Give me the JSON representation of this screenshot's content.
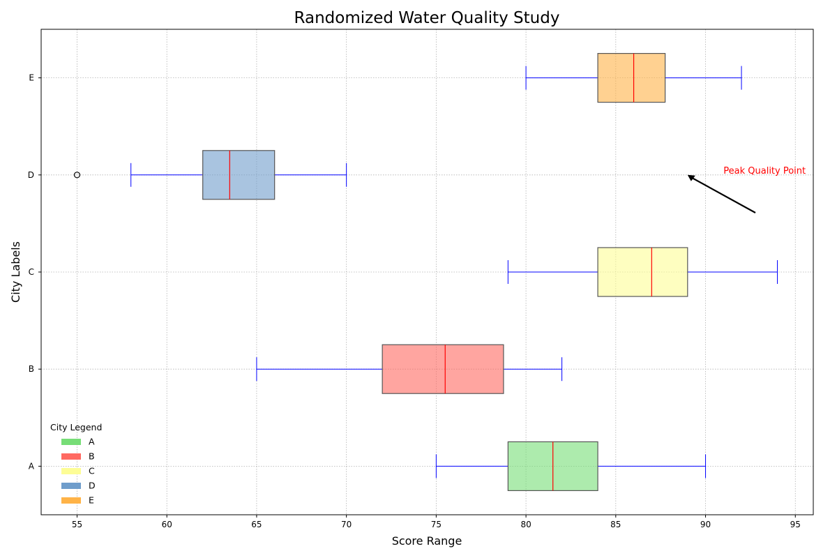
{
  "chart_data": {
    "type": "boxplot",
    "orientation": "horizontal",
    "title": "Randomized Water Quality Study",
    "xlabel": "Score Range",
    "ylabel": "City Labels",
    "xlim": [
      53,
      96
    ],
    "xticks": [
      55,
      60,
      65,
      70,
      75,
      80,
      85,
      90,
      95
    ],
    "grid": true,
    "categories": [
      "A",
      "B",
      "C",
      "D",
      "E"
    ],
    "boxes": [
      {
        "label": "A",
        "whisker_low": 75,
        "q1": 79,
        "median": 81.5,
        "q3": 84,
        "whisker_high": 90,
        "outliers": [],
        "color": "#77dd77"
      },
      {
        "label": "B",
        "whisker_low": 65,
        "q1": 72,
        "median": 75.5,
        "q3": 78.75,
        "whisker_high": 82,
        "outliers": [],
        "color": "#ff6961"
      },
      {
        "label": "C",
        "whisker_low": 79,
        "q1": 84,
        "median": 87,
        "q3": 89,
        "whisker_high": 94,
        "outliers": [],
        "color": "#fdfd96"
      },
      {
        "label": "D",
        "whisker_low": 58,
        "q1": 62,
        "median": 63.5,
        "q3": 66,
        "whisker_high": 70,
        "outliers": [
          55
        ],
        "color": "#6f9dcb"
      },
      {
        "label": "E",
        "whisker_low": 80,
        "q1": 84,
        "median": 86,
        "q3": 87.75,
        "whisker_high": 92,
        "outliers": [],
        "color": "#ffb347"
      }
    ],
    "whisker_color": "#0000ff",
    "median_color": "#ff0000",
    "box_edge_color": "#555555",
    "legend": {
      "title": "City Legend",
      "position": "lower-left",
      "entries": [
        {
          "label": "A",
          "color": "#77dd77"
        },
        {
          "label": "B",
          "color": "#ff6961"
        },
        {
          "label": "C",
          "color": "#fdfd96"
        },
        {
          "label": "D",
          "color": "#6f9dcb"
        },
        {
          "label": "E",
          "color": "#ffb347"
        }
      ]
    },
    "annotation": {
      "text": "Peak Quality Point",
      "text_color": "#ff0000",
      "arrow_tip": {
        "x": 89,
        "category": "D"
      },
      "text_anchor": {
        "x": 91,
        "category_offset": 3.55
      }
    }
  }
}
